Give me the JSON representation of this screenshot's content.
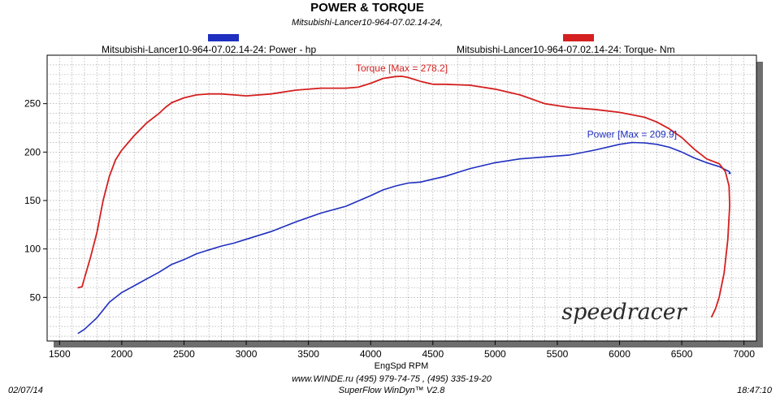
{
  "chart_data": {
    "type": "line",
    "title": "POWER & TORQUE",
    "subtitle": "Mitsubishi-Lancer10-964-07.02.14-24,",
    "xlabel": "EngSpd  RPM",
    "ylabel": "",
    "xlim": [
      1400,
      7100
    ],
    "ylim": [
      5,
      300
    ],
    "xticks": [
      1500,
      2000,
      2500,
      3000,
      3500,
      4000,
      4500,
      5000,
      5500,
      6000,
      6500,
      7000
    ],
    "yticks": [
      50,
      100,
      150,
      200,
      250
    ],
    "grid": true,
    "series": [
      {
        "name": "Mitsubishi-Lancer10-964-07.02.14-24: Power -  hp",
        "color": "#1f2fbf",
        "x": [
          1650,
          1700,
          1800,
          1900,
          2000,
          2100,
          2200,
          2300,
          2400,
          2500,
          2600,
          2700,
          2800,
          2900,
          3000,
          3200,
          3400,
          3600,
          3800,
          4000,
          4100,
          4200,
          4300,
          4400,
          4500,
          4600,
          4700,
          4800,
          5000,
          5200,
          5400,
          5600,
          5800,
          6000,
          6100,
          6200,
          6300,
          6400,
          6500,
          6600,
          6700,
          6800,
          6880,
          6890,
          6880
        ],
        "y": [
          13,
          17,
          29,
          45,
          55,
          62,
          69,
          76,
          84,
          89,
          95,
          99,
          103,
          106,
          110,
          118,
          128,
          137,
          144,
          155,
          161,
          165,
          168,
          169,
          172,
          175,
          179,
          183,
          189,
          193,
          195,
          197,
          202,
          208,
          209.9,
          209.5,
          208,
          205,
          200,
          194,
          189,
          185,
          180,
          178,
          178
        ]
      },
      {
        "name": "Mitsubishi-Lancer10-964-07.02.14-24: Torque-  Nm",
        "color": "#d42020",
        "x": [
          1650,
          1680,
          1750,
          1800,
          1850,
          1900,
          1950,
          2000,
          2100,
          2200,
          2300,
          2350,
          2400,
          2500,
          2600,
          2700,
          2800,
          2900,
          3000,
          3200,
          3400,
          3600,
          3800,
          3900,
          4000,
          4100,
          4200,
          4250,
          4300,
          4400,
          4500,
          4600,
          4800,
          5000,
          5200,
          5400,
          5600,
          5800,
          6000,
          6200,
          6300,
          6400,
          6500,
          6600,
          6700,
          6800,
          6850,
          6880,
          6885,
          6870,
          6840,
          6800,
          6770,
          6740
        ],
        "y": [
          60,
          61,
          92,
          117,
          150,
          175,
          192,
          202,
          217,
          230,
          240,
          246,
          251,
          256,
          259,
          260,
          260,
          259,
          258,
          260,
          264,
          266,
          266,
          267,
          271,
          276,
          278,
          278.2,
          277,
          273,
          270,
          270,
          269,
          265,
          259,
          250,
          246,
          244,
          241,
          236,
          231,
          224,
          215,
          203,
          193,
          188,
          180,
          165,
          145,
          110,
          75,
          50,
          38,
          30
        ]
      }
    ],
    "annotations": [
      {
        "text": "Torque [Max = 278.2]",
        "x": 4250,
        "y": 278.2,
        "color": "#d42020"
      },
      {
        "text": "Power  [Max = 209.9]",
        "x": 6100,
        "y": 209.9,
        "color": "#1f2fbf"
      }
    ]
  },
  "legend": {
    "power_label": "Mitsubishi-Lancer10-964-07.02.14-24: Power -  hp",
    "torque_label": "Mitsubishi-Lancer10-964-07.02.14-24: Torque-  Nm",
    "power_color": "#1f2fbf",
    "torque_color": "#d42020"
  },
  "watermark": "speedracer",
  "footer": {
    "date": "02/07/14",
    "time": "18:47:10",
    "contacts": "www.WINDE.ru  (495) 979-74-75 , (495) 335-19-20",
    "software": "SuperFlow WinDyn™ V2.8"
  }
}
